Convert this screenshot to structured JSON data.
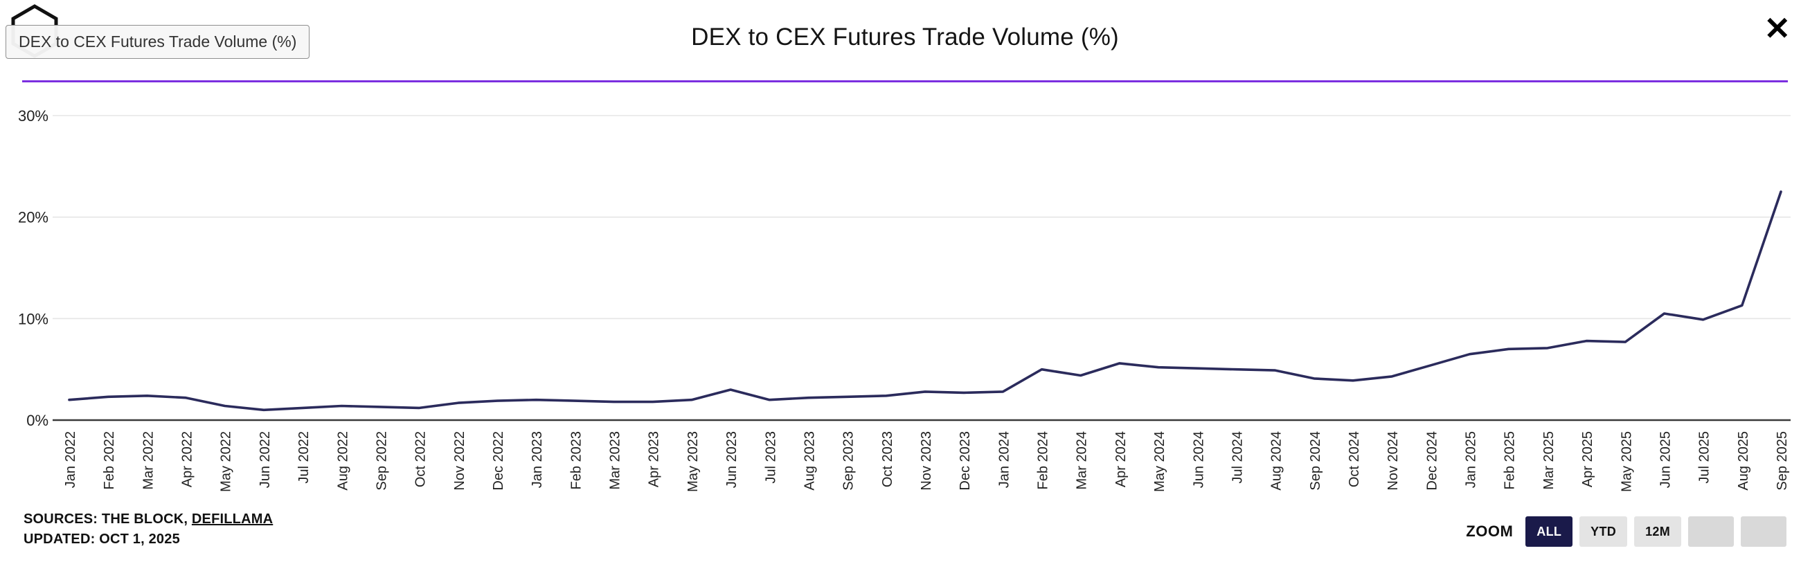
{
  "header": {
    "title": "DEX to CEX Futures Trade Volume (%)",
    "tooltip_label": "DEX to CEX Futures Trade Volume (%)",
    "close_label": "✕"
  },
  "footer": {
    "sources_prefix": "SOURCES: THE BLOCK, ",
    "sources_link": "DEFILLAMA",
    "updated": "UPDATED: OCT 1, 2025",
    "zoom_label": "ZOOM",
    "zoom_buttons": [
      "ALL",
      "YTD",
      "12M",
      "",
      ""
    ]
  },
  "colors": {
    "accent_purple": "#7b2fe0",
    "line": "#2b2b5c",
    "gridline": "#e6e6e6",
    "axis": "#3a3a3a",
    "zoom_active_bg": "#1a1a4a"
  },
  "chart_data": {
    "type": "line",
    "title": "DEX to CEX Futures Trade Volume (%)",
    "x": [
      "Jan 2022",
      "Feb 2022",
      "Mar 2022",
      "Apr 2022",
      "May 2022",
      "Jun 2022",
      "Jul 2022",
      "Aug 2022",
      "Sep 2022",
      "Oct 2022",
      "Nov 2022",
      "Dec 2022",
      "Jan 2023",
      "Feb 2023",
      "Mar 2023",
      "Apr 2023",
      "May 2023",
      "Jun 2023",
      "Jul 2023",
      "Aug 2023",
      "Sep 2023",
      "Oct 2023",
      "Nov 2023",
      "Dec 2023",
      "Jan 2024",
      "Feb 2024",
      "Mar 2024",
      "Apr 2024",
      "May 2024",
      "Jun 2024",
      "Jul 2024",
      "Aug 2024",
      "Sep 2024",
      "Oct 2024",
      "Nov 2024",
      "Dec 2024",
      "Jan 2025",
      "Feb 2025",
      "Mar 2025",
      "Apr 2025",
      "May 2025",
      "Jun 2025",
      "Jul 2025",
      "Aug 2025",
      "Sep 2025"
    ],
    "series": [
      {
        "name": "DEX to CEX Futures Trade Volume (%)",
        "values": [
          2.0,
          2.3,
          2.4,
          2.2,
          1.4,
          1.0,
          1.2,
          1.4,
          1.3,
          1.2,
          1.7,
          1.9,
          2.0,
          1.9,
          1.8,
          1.8,
          2.0,
          3.0,
          2.0,
          2.2,
          2.3,
          2.4,
          2.8,
          2.7,
          2.8,
          5.0,
          4.4,
          5.6,
          5.2,
          5.1,
          5.0,
          4.9,
          4.1,
          3.9,
          4.3,
          5.4,
          6.5,
          7.0,
          7.1,
          7.8,
          7.7,
          10.5,
          9.9,
          11.3,
          22.5
        ]
      }
    ],
    "xlabel": "",
    "ylabel": "",
    "ylim": [
      0,
      30
    ],
    "yticks": [
      0,
      10,
      20,
      30
    ],
    "ytick_labels": [
      "0%",
      "10%",
      "20%",
      "30%"
    ],
    "grid": true,
    "legend_position": "none"
  }
}
